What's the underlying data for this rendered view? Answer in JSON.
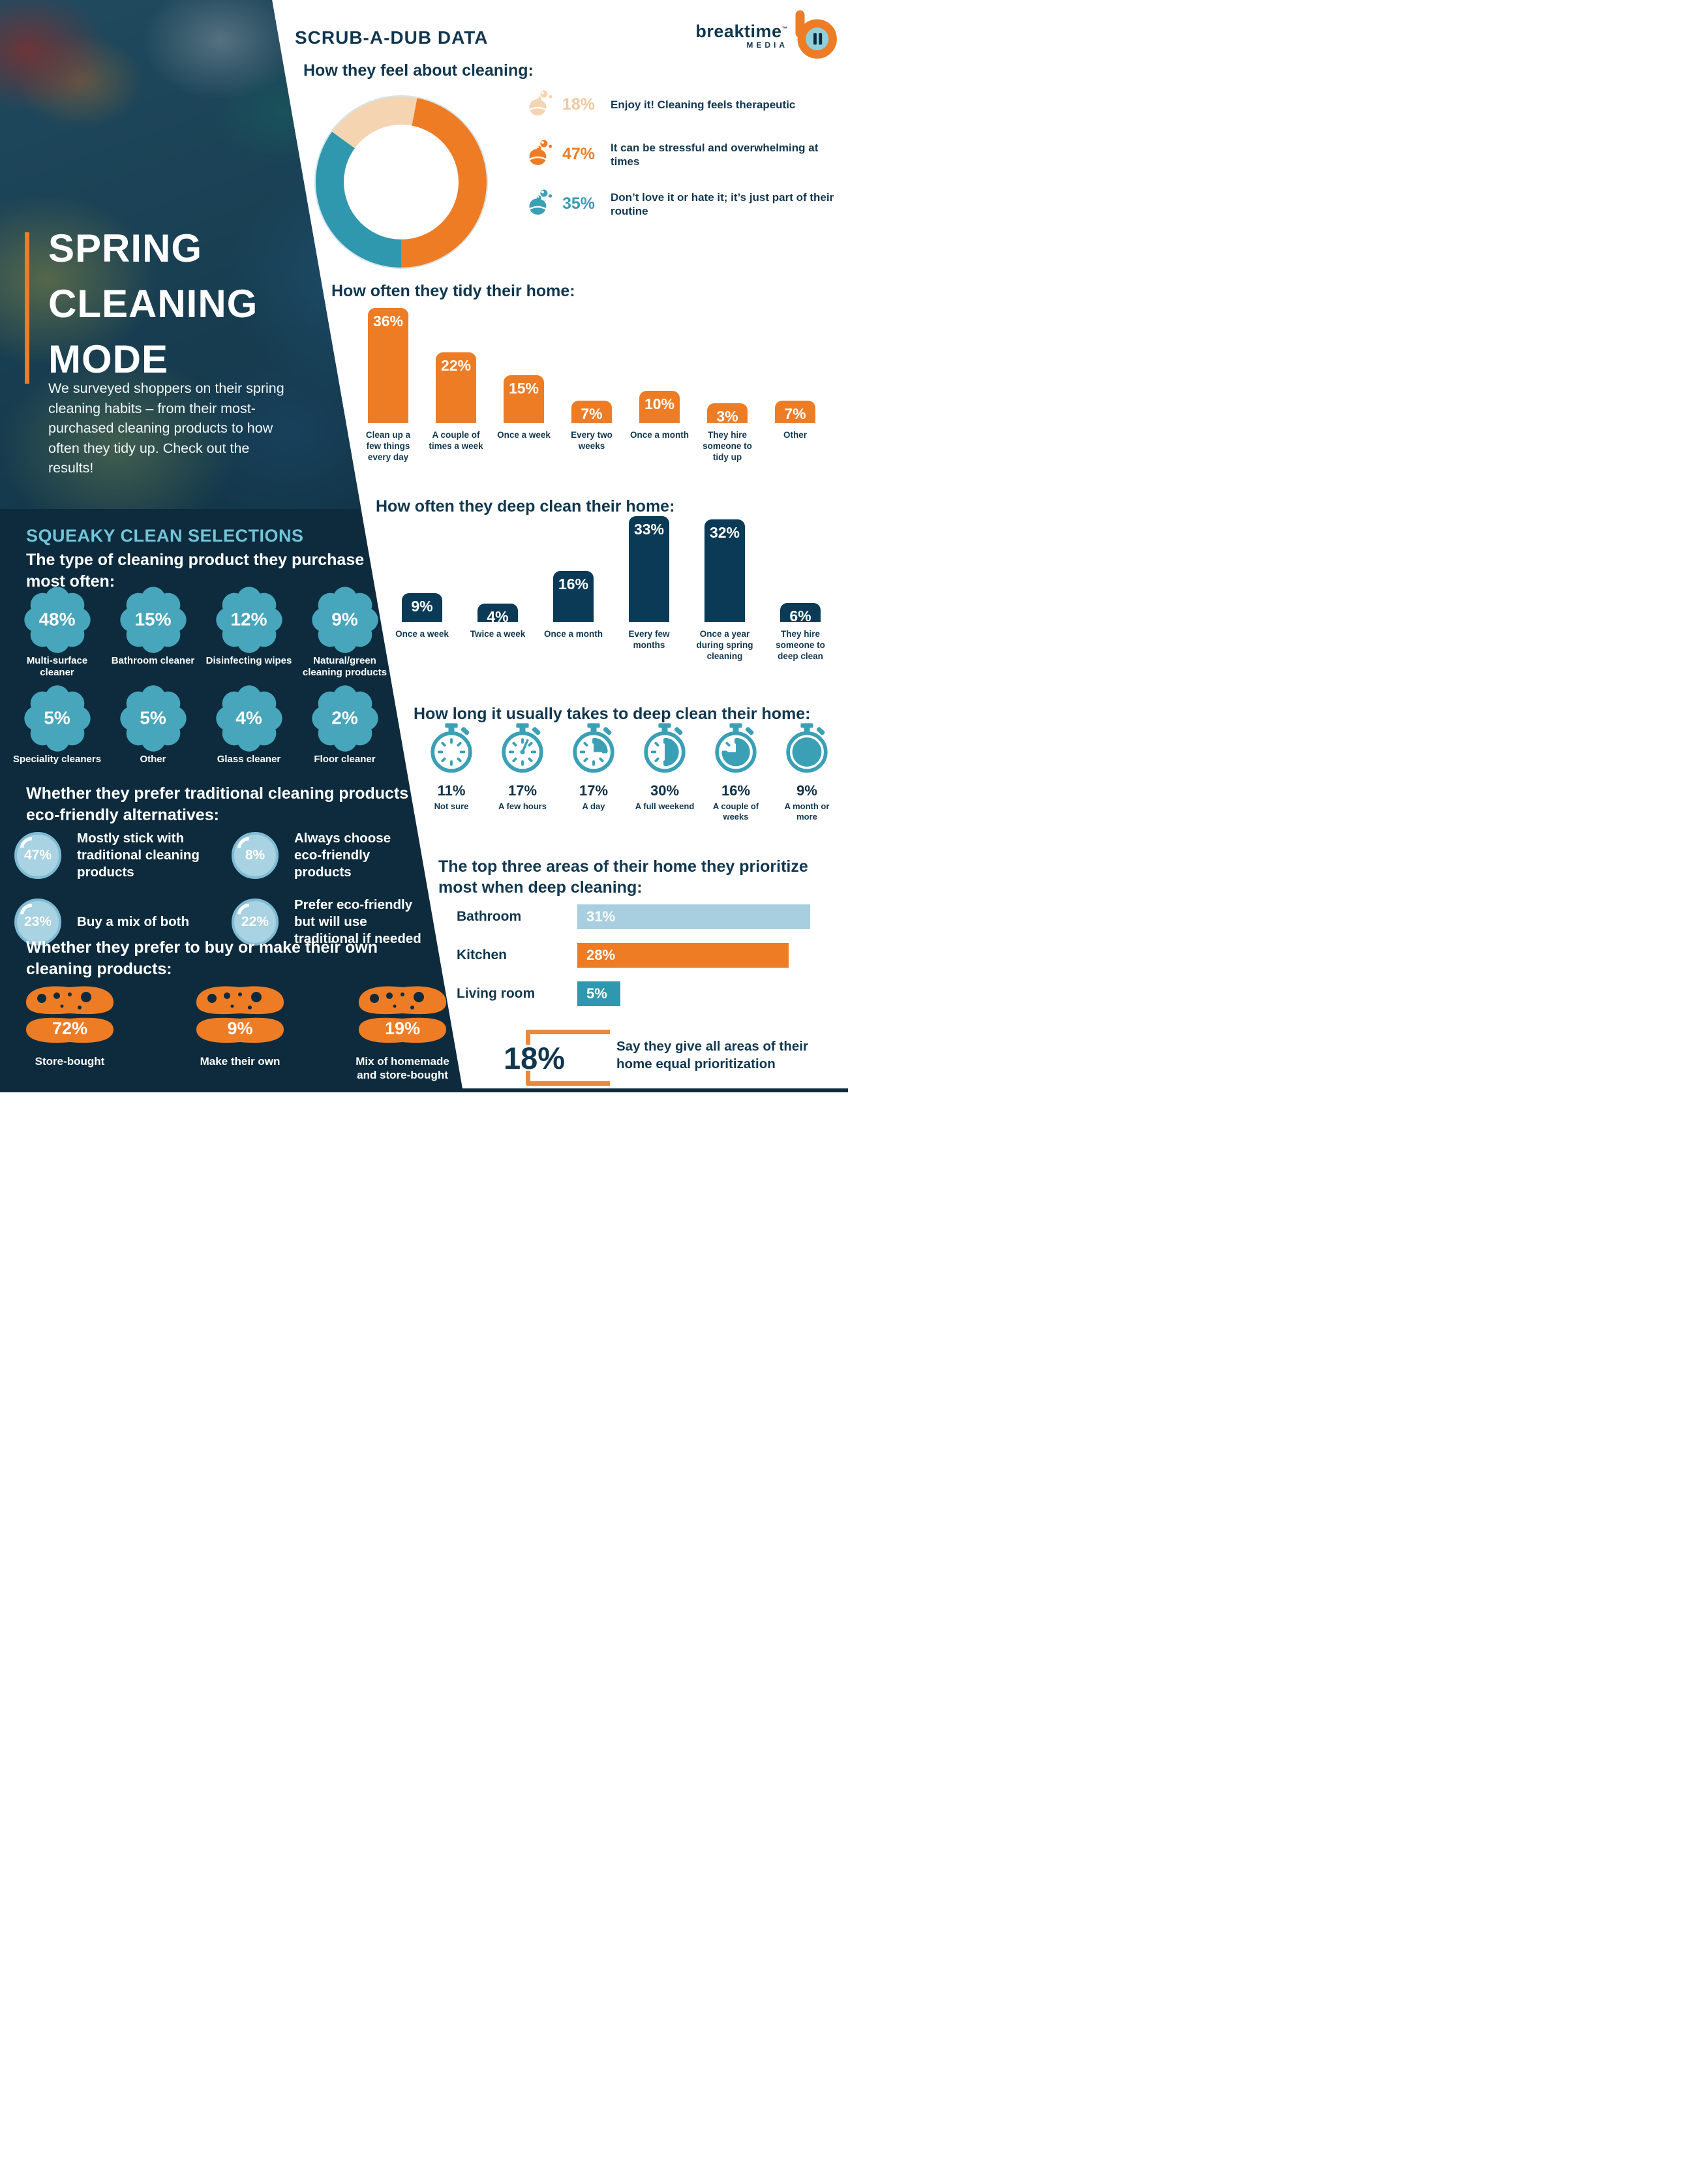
{
  "colors": {
    "orange": "#EE7C25",
    "navy_panel": "#0D2B3D",
    "navy_bar": "#0A3A56",
    "heading_navy": "#11374F",
    "teal": "#2F97AE",
    "icon_teal": "#3BA0B6",
    "flower_teal": "#47A5BC",
    "tan": "#F5D4B1",
    "tan_text": "#EFC9A0",
    "light_blue": "#A7CFDF",
    "section_title_teal": "#72C5D9",
    "bubble_blue": "#A9D2E2"
  },
  "brand": {
    "name": "breaktime",
    "tm": "™",
    "sub": "MEDIA"
  },
  "left": {
    "title": "SPRING\nCLEANING\nMODE",
    "intro": "We surveyed shoppers on their spring cleaning habits – from their most-purchased cleaning products to how often they tidy up. Check out the results!",
    "squeaky": {
      "title": "SQUEAKY CLEAN SELECTIONS",
      "heading": "The type of cleaning product they purchase most often:",
      "items": [
        {
          "pct": "48%",
          "label": "Multi-surface cleaner"
        },
        {
          "pct": "15%",
          "label": "Bathroom cleaner"
        },
        {
          "pct": "12%",
          "label": "Disinfecting wipes"
        },
        {
          "pct": "9%",
          "label": "Natural/green cleaning products"
        },
        {
          "pct": "5%",
          "label": "Speciality cleaners"
        },
        {
          "pct": "5%",
          "label": "Other"
        },
        {
          "pct": "4%",
          "label": "Glass cleaner"
        },
        {
          "pct": "2%",
          "label": "Floor cleaner"
        }
      ]
    },
    "eco": {
      "heading": "Whether they prefer traditional cleaning products or eco-friendly alternatives:",
      "items": [
        {
          "pct": "47%",
          "label": "Mostly stick with traditional cleaning products"
        },
        {
          "pct": "8%",
          "label": "Always choose eco-friendly products"
        },
        {
          "pct": "23%",
          "label": "Buy a mix of both"
        },
        {
          "pct": "22%",
          "label": "Prefer eco-friendly but will use traditional if needed"
        }
      ]
    },
    "diy": {
      "heading": "Whether they prefer to buy or make their own cleaning products:",
      "items": [
        {
          "pct": "72%",
          "label": "Store-bought"
        },
        {
          "pct": "9%",
          "label": "Make their own"
        },
        {
          "pct": "19%",
          "label": "Mix of homemade and store-bought"
        }
      ]
    }
  },
  "right": {
    "title": "SCRUB-A-DUB DATA",
    "feel": {
      "heading": "How they feel about cleaning:",
      "legend": [
        {
          "pct": "18%",
          "pct_color": "#EFC9A0",
          "icon_color": "#F5D4B1",
          "text": "Enjoy it! Cleaning feels therapeutic"
        },
        {
          "pct": "47%",
          "pct_color": "#EE7C25",
          "icon_color": "#EE7C25",
          "text": "It can be stressful and overwhelming at times"
        },
        {
          "pct": "35%",
          "pct_color": "#3A9CB5",
          "icon_color": "#3BA0B6",
          "text": "Don’t love it or hate it; it’s just part of their routine"
        }
      ]
    },
    "tidy": {
      "heading": "How often they tidy their home:"
    },
    "deep": {
      "heading": "How often they deep clean their home:"
    },
    "duration": {
      "heading": "How long it usually takes to deep clean their home:"
    },
    "areas": {
      "heading": "The top three areas of their home they prioritize most when deep cleaning:"
    }
  },
  "chart_data": [
    {
      "id": "feelings-donut",
      "type": "pie",
      "title": "How they feel about cleaning:",
      "start": "bottom",
      "direction": "clockwise",
      "hole": 0.67,
      "legend_position": "right",
      "slices": [
        {
          "label": "Don’t love it or hate it; it’s just part of their routine",
          "value": 35,
          "color": "#2F97AE"
        },
        {
          "label": "Enjoy it! Cleaning feels therapeutic",
          "value": 18,
          "color": "#F5D4B1"
        },
        {
          "label": "It can be stressful and overwhelming at times",
          "value": 47,
          "color": "#EE7C25"
        }
      ]
    },
    {
      "id": "tidy-frequency",
      "type": "bar",
      "title": "How often they tidy their home:",
      "unit": "%",
      "categories": [
        "Clean up a few things every day",
        "A couple of times a week",
        "Once a week",
        "Every two weeks",
        "Once a month",
        "They hire someone to tidy up",
        "Other"
      ],
      "values": [
        36,
        22,
        15,
        7,
        10,
        3,
        7
      ],
      "bar_color": "#EE7C25",
      "value_label_position": "inside-top",
      "ylim": [
        0,
        40
      ],
      "grid": false
    },
    {
      "id": "deep-clean-frequency",
      "type": "bar",
      "title": "How often they deep clean their home:",
      "unit": "%",
      "categories": [
        "Once a week",
        "Twice a week",
        "Once a month",
        "Every few months",
        "Once a year during spring cleaning",
        "They hire someone to deep clean"
      ],
      "values": [
        9,
        4,
        16,
        33,
        32,
        6
      ],
      "bar_color": "#0A3A56",
      "value_label_position": "inside-top",
      "ylim": [
        0,
        36
      ],
      "grid": false
    },
    {
      "id": "deep-clean-duration",
      "type": "pictogram",
      "title": "How long it usually takes to deep clean their home:",
      "unit": "%",
      "categories": [
        "Not sure",
        "A few hours",
        "A day",
        "A full weekend",
        "A couple of weeks",
        "A month or more"
      ],
      "values": [
        11,
        17,
        17,
        30,
        16,
        9
      ],
      "icon": "stopwatch",
      "icon_fills": [
        "empty",
        "hand",
        "quarter",
        "half",
        "three-quarter",
        "full"
      ],
      "icon_color": "#3BA0B6"
    },
    {
      "id": "priority-areas",
      "type": "bar",
      "orientation": "horizontal",
      "title": "The top three areas of their home they prioritize most when deep cleaning:",
      "unit": "%",
      "categories": [
        "Bathroom",
        "Kitchen",
        "Living room"
      ],
      "values": [
        31,
        28,
        5
      ],
      "bar_colors": [
        "#A7CFDF",
        "#EE7C25",
        "#2F97AE"
      ],
      "callout": {
        "value": 18,
        "text": "Say they give all areas of their home equal prioritization"
      }
    }
  ]
}
